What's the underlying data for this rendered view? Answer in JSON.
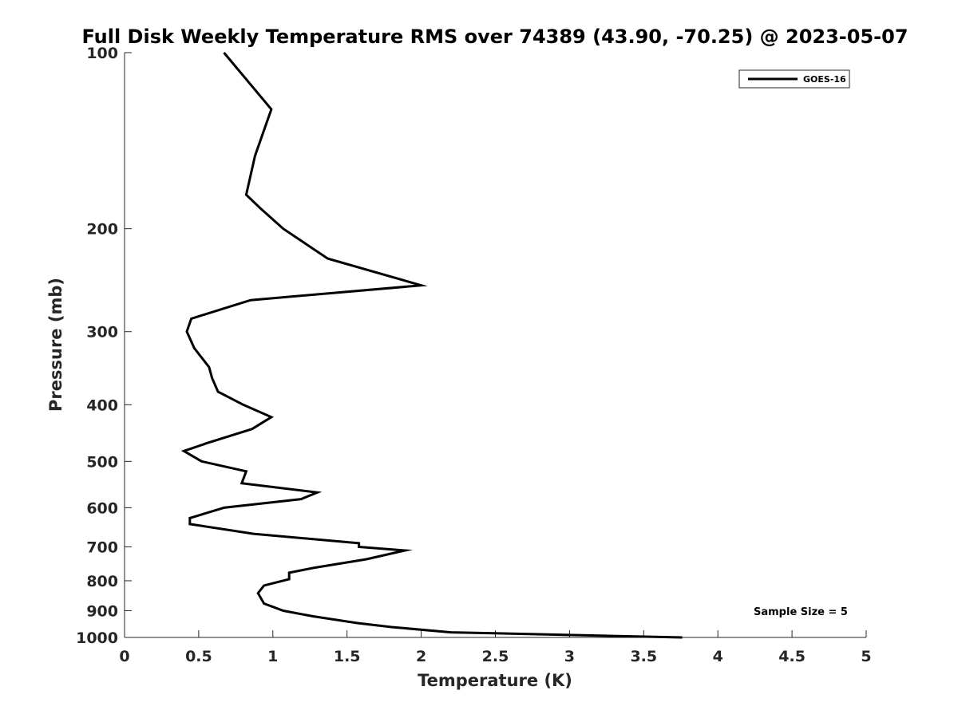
{
  "chart_data": {
    "type": "line",
    "title": "Full Disk Weekly Temperature RMS over 74389 (43.90, -70.25) @ 2023-05-07",
    "xlabel": "Temperature (K)",
    "ylabel": "Pressure (mb)",
    "xlim": [
      0,
      5
    ],
    "ylim": [
      100,
      1000
    ],
    "yscale": "log",
    "yreversed": true,
    "grid": false,
    "legend_position": "top-right",
    "x_ticks": [
      "0",
      "0.5",
      "1",
      "1.5",
      "2",
      "2.5",
      "3",
      "3.5",
      "4",
      "4.5",
      "5"
    ],
    "y_ticks": [
      "100",
      "200",
      "300",
      "400",
      "500",
      "600",
      "700",
      "800",
      "900",
      "1000"
    ],
    "series": [
      {
        "name": "GOES-16",
        "color": "#000000",
        "x": [
          0.67,
          0.99,
          0.88,
          0.82,
          0.92,
          1.07,
          1.37,
          2.0,
          0.85,
          0.45,
          0.42,
          0.47,
          0.57,
          0.59,
          0.63,
          0.8,
          0.99,
          0.86,
          0.56,
          0.4,
          0.52,
          0.82,
          0.79,
          1.3,
          1.19,
          0.67,
          0.44,
          0.44,
          0.87,
          1.58,
          1.58,
          1.89,
          1.63,
          1.28,
          1.11,
          1.11,
          0.94,
          0.9,
          0.94,
          1.07,
          1.27,
          1.57,
          1.8,
          2.2,
          3.76
        ],
        "y": [
          100,
          125,
          150,
          175,
          185,
          200,
          225,
          250,
          265,
          285,
          300,
          320,
          345,
          360,
          380,
          400,
          420,
          440,
          465,
          480,
          500,
          520,
          545,
          565,
          580,
          600,
          625,
          640,
          665,
          690,
          700,
          710,
          735,
          760,
          775,
          795,
          815,
          840,
          875,
          900,
          920,
          945,
          960,
          980,
          1000
        ]
      }
    ],
    "annotations": [
      "Sample Size = 5"
    ]
  }
}
